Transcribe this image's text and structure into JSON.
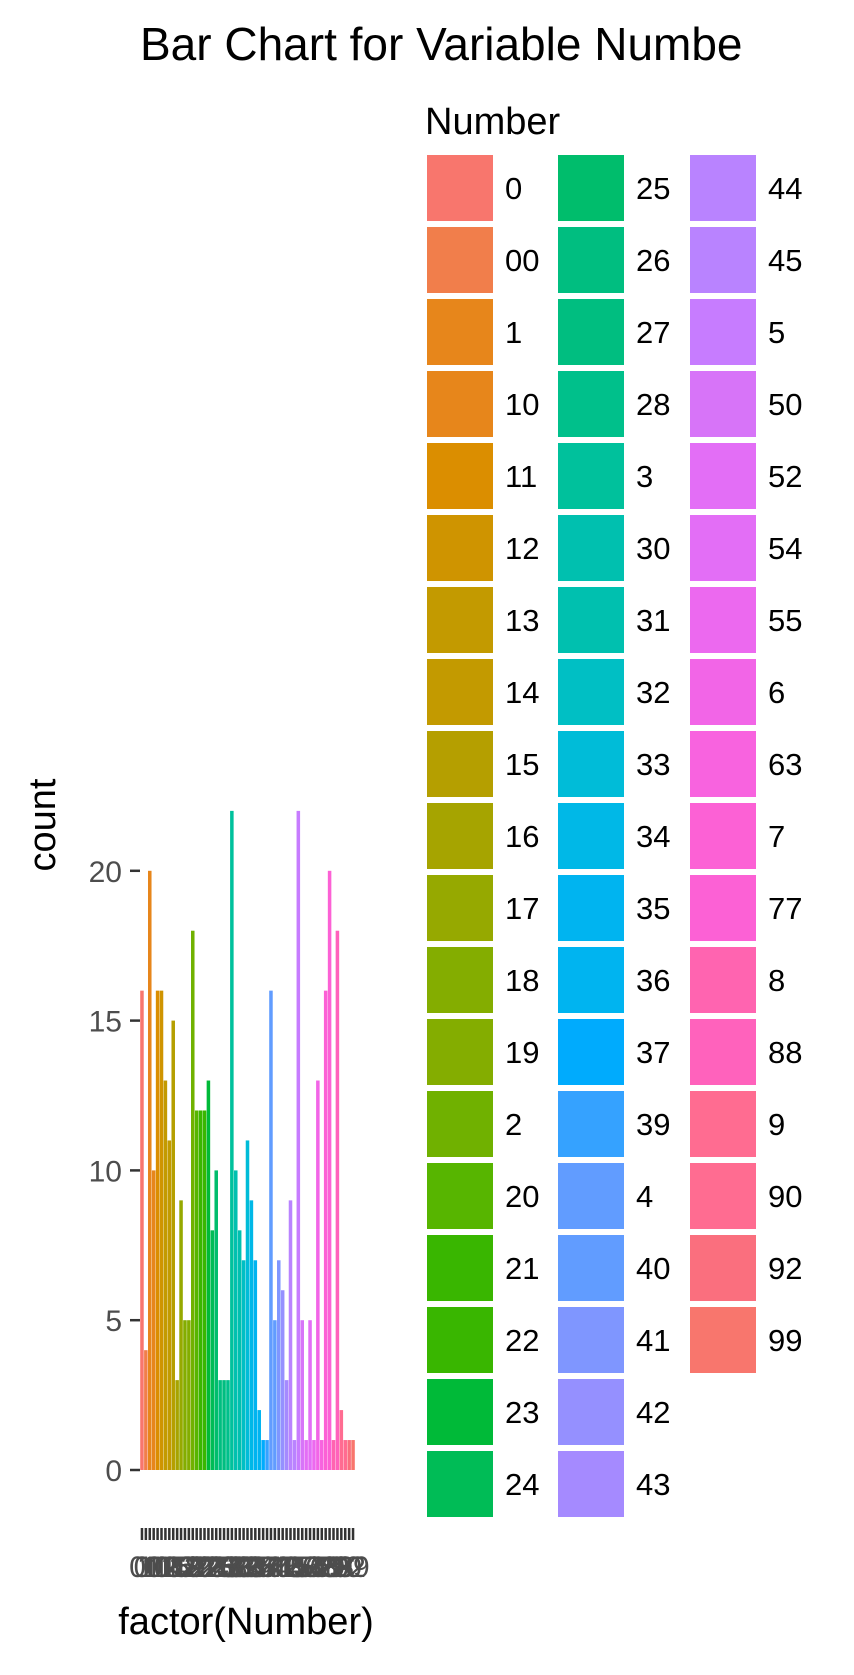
{
  "chart_data": {
    "type": "bar",
    "title": "Bar Chart for Variable Numbe",
    "xlabel": "factor(Number)",
    "ylabel": "count",
    "ylim": [
      0,
      22
    ],
    "yticks": [
      0,
      5,
      10,
      15,
      20
    ],
    "grid": false,
    "legend_position": "right",
    "legend_title": "Number",
    "categories": [
      "0",
      "00",
      "1",
      "10",
      "11",
      "12",
      "13",
      "14",
      "15",
      "16",
      "17",
      "18",
      "19",
      "2",
      "20",
      "21",
      "22",
      "23",
      "24",
      "25",
      "26",
      "27",
      "28",
      "3",
      "30",
      "31",
      "32",
      "33",
      "34",
      "35",
      "36",
      "37",
      "39",
      "4",
      "40",
      "41",
      "42",
      "43",
      "44",
      "45",
      "5",
      "50",
      "52",
      "54",
      "55",
      "6",
      "63",
      "7",
      "77",
      "8",
      "88",
      "9",
      "90",
      "92",
      "99"
    ],
    "values": [
      16,
      4,
      20,
      10,
      16,
      16,
      13,
      11,
      15,
      3,
      9,
      5,
      5,
      18,
      12,
      12,
      12,
      13,
      8,
      10,
      3,
      3,
      3,
      22,
      10,
      8,
      7,
      11,
      9,
      7,
      2,
      1,
      1,
      16,
      5,
      7,
      6,
      3,
      9,
      1,
      22,
      5,
      1,
      5,
      1,
      13,
      1,
      16,
      20,
      1,
      18,
      2,
      1,
      1,
      1
    ],
    "colors": [
      "#F8766D",
      "#F17E4B",
      "#E7861B",
      "#DB8E00",
      "#CF9400",
      "#C39A00",
      "#B59F00",
      "#A6A400",
      "#96A900",
      "#84AD00",
      "#70B100",
      "#57B500",
      "#39B600",
      "#00BA38",
      "#00BC56",
      "#00BD6C",
      "#00BE80",
      "#00C08B",
      "#00C19C",
      "#00C0AF",
      "#00BFC4",
      "#00BCD8",
      "#00B8E7",
      "#00B4F0",
      "#00ABFD",
      "#35A2FF",
      "#619CFF",
      "#7F96FF",
      "#9590FF",
      "#A58AFF",
      "#B983FF",
      "#C77CFF",
      "#D774F8",
      "#E36EF6",
      "#EC69EF",
      "#F265E7",
      "#F863DF",
      "#FC61D5",
      "#FF64B0",
      "#FF62BC",
      "#FF6C91",
      "#FA6F7E",
      "#F8766D"
    ]
  }
}
